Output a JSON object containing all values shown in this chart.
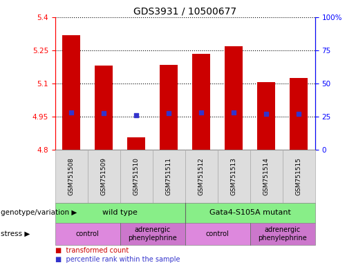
{
  "title": "GDS3931 / 10500677",
  "samples": [
    "GSM751508",
    "GSM751509",
    "GSM751510",
    "GSM751511",
    "GSM751512",
    "GSM751513",
    "GSM751514",
    "GSM751515"
  ],
  "bar_values": [
    5.32,
    5.18,
    4.855,
    5.185,
    5.235,
    5.27,
    5.105,
    5.125
  ],
  "blue_dot_values": [
    4.97,
    4.965,
    4.955,
    4.966,
    4.968,
    4.968,
    4.963,
    4.963
  ],
  "ylim": [
    4.8,
    5.4
  ],
  "yticks": [
    4.8,
    4.95,
    5.1,
    5.25,
    5.4
  ],
  "y2labels": [
    "0",
    "25",
    "50",
    "75",
    "100%"
  ],
  "bar_color": "#cc0000",
  "dot_color": "#3333cc",
  "bar_width": 0.55,
  "genotype_groups": [
    {
      "label": "wild type",
      "start": 0,
      "end": 4,
      "color": "#88ee88"
    },
    {
      "label": "Gata4-S105A mutant",
      "start": 4,
      "end": 8,
      "color": "#88ee88"
    }
  ],
  "stress_groups": [
    {
      "label": "control",
      "start": 0,
      "end": 2,
      "color": "#dd88dd"
    },
    {
      "label": "adrenergic\nphenylephrine",
      "start": 2,
      "end": 4,
      "color": "#cc77cc"
    },
    {
      "label": "control",
      "start": 4,
      "end": 6,
      "color": "#dd88dd"
    },
    {
      "label": "adrenergic\nphenylephrine",
      "start": 6,
      "end": 8,
      "color": "#cc77cc"
    }
  ],
  "legend_items": [
    {
      "label": "transformed count",
      "color": "#cc0000"
    },
    {
      "label": "percentile rank within the sample",
      "color": "#3333cc"
    }
  ],
  "tick_fontsize": 7.5,
  "title_fontsize": 10,
  "sample_fontsize": 6.5,
  "label_fontsize": 7.5,
  "geno_fontsize": 8,
  "stress_fontsize": 7
}
